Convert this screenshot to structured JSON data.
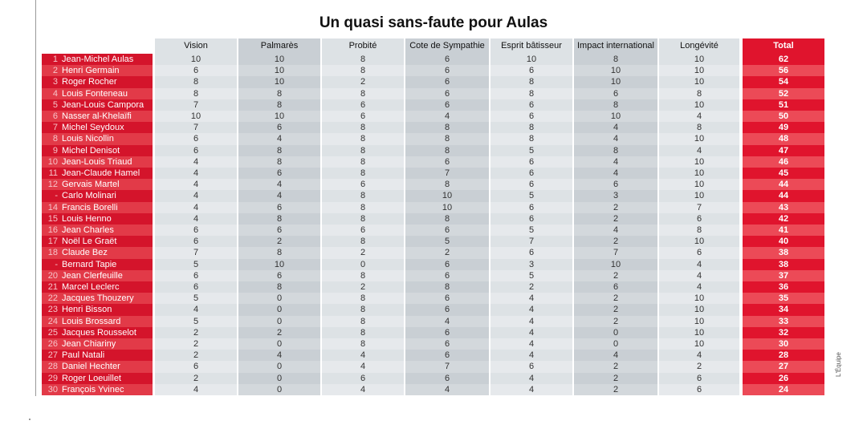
{
  "title": "Un quasi sans-faute pour Aulas",
  "credit": "L'Équipe",
  "table": {
    "columns": [
      "Vision",
      "Palmarès",
      "Probité",
      "Cote de Sympathie",
      "Esprit bâtisseur",
      "Impact international",
      "Longévité",
      "Total"
    ],
    "rows": [
      {
        "rank": 1,
        "name": "Jean-Michel Aulas",
        "scores": [
          10,
          10,
          8,
          6,
          10,
          8,
          10
        ],
        "total": 62
      },
      {
        "rank": 2,
        "name": "Henri Germain",
        "scores": [
          6,
          10,
          8,
          6,
          6,
          10,
          10
        ],
        "total": 56
      },
      {
        "rank": 3,
        "name": "Roger Rocher",
        "scores": [
          8,
          10,
          2,
          6,
          8,
          10,
          10
        ],
        "total": 54
      },
      {
        "rank": 4,
        "name": "Louis Fonteneau",
        "scores": [
          8,
          8,
          8,
          6,
          8,
          6,
          8
        ],
        "total": 52
      },
      {
        "rank": 5,
        "name": "Jean-Louis Campora",
        "scores": [
          7,
          8,
          6,
          6,
          6,
          8,
          10
        ],
        "total": 51
      },
      {
        "rank": 6,
        "name": "Nasser al-Khelaïfi",
        "scores": [
          10,
          10,
          6,
          4,
          6,
          10,
          4
        ],
        "total": 50
      },
      {
        "rank": 7,
        "name": "Michel Seydoux",
        "scores": [
          7,
          6,
          8,
          8,
          8,
          4,
          8
        ],
        "total": 49
      },
      {
        "rank": 8,
        "name": "Louis Nicollin",
        "scores": [
          6,
          4,
          8,
          8,
          8,
          4,
          10
        ],
        "total": 48
      },
      {
        "rank": 9,
        "name": "Michel Denisot",
        "scores": [
          6,
          8,
          8,
          8,
          5,
          8,
          4
        ],
        "total": 47
      },
      {
        "rank": 10,
        "name": "Jean-Louis Triaud",
        "scores": [
          4,
          8,
          8,
          6,
          6,
          4,
          10
        ],
        "total": 46
      },
      {
        "rank": 11,
        "name": "Jean-Claude Hamel",
        "scores": [
          4,
          6,
          8,
          7,
          6,
          4,
          10
        ],
        "total": 45
      },
      {
        "rank": 12,
        "name": "Gervais Martel",
        "scores": [
          4,
          4,
          6,
          8,
          6,
          6,
          10
        ],
        "total": 44
      },
      {
        "rank": "-",
        "name": "Carlo Molinari",
        "scores": [
          4,
          4,
          8,
          10,
          5,
          3,
          10
        ],
        "total": 44
      },
      {
        "rank": 14,
        "name": "Francis Borelli",
        "scores": [
          4,
          6,
          8,
          10,
          6,
          2,
          7
        ],
        "total": 43
      },
      {
        "rank": 15,
        "name": "Louis Henno",
        "scores": [
          4,
          8,
          8,
          8,
          6,
          2,
          6
        ],
        "total": 42
      },
      {
        "rank": 16,
        "name": "Jean Charles",
        "scores": [
          6,
          6,
          6,
          6,
          5,
          4,
          8
        ],
        "total": 41
      },
      {
        "rank": 17,
        "name": "Noël Le Graët",
        "scores": [
          6,
          2,
          8,
          5,
          7,
          2,
          10
        ],
        "total": 40
      },
      {
        "rank": 18,
        "name": "Claude Bez",
        "scores": [
          7,
          8,
          2,
          2,
          6,
          7,
          6
        ],
        "total": 38
      },
      {
        "rank": "-",
        "name": "Bernard Tapie",
        "scores": [
          5,
          10,
          0,
          6,
          3,
          10,
          4
        ],
        "total": 38
      },
      {
        "rank": 20,
        "name": "Jean Clerfeuille",
        "scores": [
          6,
          6,
          8,
          6,
          5,
          2,
          4
        ],
        "total": 37
      },
      {
        "rank": 21,
        "name": "Marcel Leclerc",
        "scores": [
          6,
          8,
          2,
          8,
          2,
          6,
          4
        ],
        "total": 36
      },
      {
        "rank": 22,
        "name": "Jacques Thouzery",
        "scores": [
          5,
          0,
          8,
          6,
          4,
          2,
          10
        ],
        "total": 35
      },
      {
        "rank": 23,
        "name": "Henri Bisson",
        "scores": [
          4,
          0,
          8,
          6,
          4,
          2,
          10
        ],
        "total": 34
      },
      {
        "rank": 24,
        "name": "Louis Brossard",
        "scores": [
          5,
          0,
          8,
          4,
          4,
          2,
          10
        ],
        "total": 33
      },
      {
        "rank": 25,
        "name": "Jacques Rousselot",
        "scores": [
          2,
          2,
          8,
          6,
          4,
          0,
          10
        ],
        "total": 32
      },
      {
        "rank": 26,
        "name": "Jean Chiariny",
        "scores": [
          2,
          0,
          8,
          6,
          4,
          0,
          10
        ],
        "total": 30
      },
      {
        "rank": 27,
        "name": "Paul Natali",
        "scores": [
          2,
          4,
          4,
          6,
          4,
          4,
          4
        ],
        "total": 28
      },
      {
        "rank": 28,
        "name": "Daniel Hechter",
        "scores": [
          6,
          0,
          4,
          7,
          6,
          2,
          2
        ],
        "total": 27
      },
      {
        "rank": 29,
        "name": "Roger Loeuillet",
        "scores": [
          2,
          0,
          6,
          6,
          4,
          2,
          6
        ],
        "total": 26
      },
      {
        "rank": 30,
        "name": "François Yvinec",
        "scores": [
          4,
          0,
          4,
          4,
          4,
          2,
          6
        ],
        "total": 24
      }
    ]
  }
}
